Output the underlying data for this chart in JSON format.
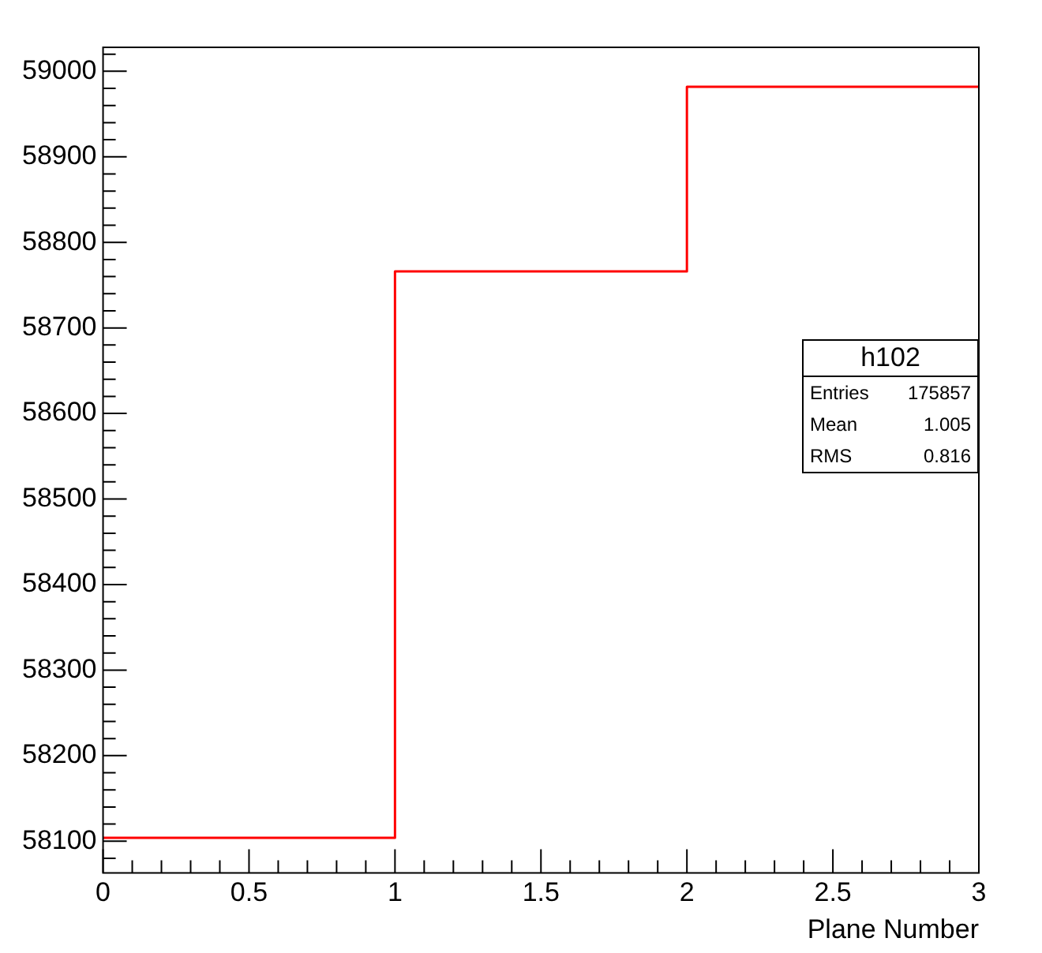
{
  "chart_data": {
    "type": "histogram",
    "xlabel": "Plane Number",
    "bins": [
      0,
      1,
      2,
      3
    ],
    "values": [
      58104,
      58766,
      58982
    ],
    "color": "#ff0000",
    "xlim": [
      0,
      3
    ],
    "xticks": [
      0,
      0.5,
      1,
      1.5,
      2,
      2.5,
      3
    ],
    "ylim": [
      58063,
      59028
    ],
    "yticks": [
      58100,
      58200,
      58300,
      58400,
      58500,
      58600,
      58700,
      58800,
      58900,
      59000
    ],
    "annotations": [
      "h102",
      "Entries  175857",
      "Mean   1.005",
      "RMS   0.816"
    ]
  }
}
